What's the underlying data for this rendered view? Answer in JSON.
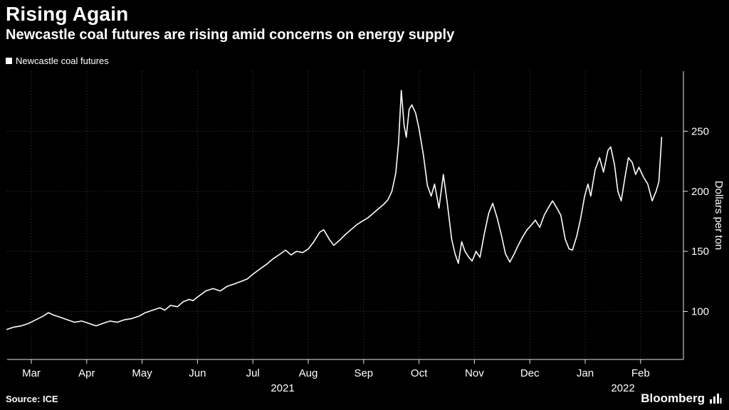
{
  "header": {
    "title": "Rising Again",
    "subtitle": "Newcastle coal futures are rising amid concerns on energy supply"
  },
  "legend": {
    "label": "Newcastle coal futures",
    "marker_color": "#ffffff"
  },
  "footer": {
    "source": "Source: ICE",
    "brand": "Bloomberg"
  },
  "colors": {
    "background": "#000000",
    "line": "#ffffff",
    "grid": "#3a3a3a",
    "axis": "#e8e8e8",
    "text": "#ffffff"
  },
  "chart_data": {
    "type": "line",
    "title": "Rising Again",
    "subtitle": "Newcastle coal futures are rising amid concerns on energy supply",
    "series_name": "Newcastle coal futures",
    "ylabel": "Dollars per ton",
    "x_unit": "months since 2021-03-01",
    "x_tick_labels": [
      "Mar",
      "Apr",
      "May",
      "Jun",
      "Jul",
      "Aug",
      "Sep",
      "Oct",
      "Nov",
      "Dec",
      "Jan",
      "Feb"
    ],
    "year_labels": [
      "2021",
      "2022"
    ],
    "y_ticks": [
      100,
      150,
      200,
      250
    ],
    "ylim": [
      60,
      300
    ],
    "grid": "dotted",
    "legend_position": "top-left",
    "source": "ICE",
    "points": [
      [
        -0.44,
        85
      ],
      [
        -0.31,
        87
      ],
      [
        -0.18,
        88
      ],
      [
        -0.05,
        90
      ],
      [
        0.08,
        93
      ],
      [
        0.21,
        96
      ],
      [
        0.31,
        99
      ],
      [
        0.4,
        97
      ],
      [
        0.53,
        95
      ],
      [
        0.65,
        93
      ],
      [
        0.78,
        91
      ],
      [
        0.91,
        92
      ],
      [
        1.04,
        90
      ],
      [
        1.17,
        88
      ],
      [
        1.29,
        90
      ],
      [
        1.42,
        92
      ],
      [
        1.55,
        91
      ],
      [
        1.68,
        93
      ],
      [
        1.81,
        94
      ],
      [
        1.94,
        96
      ],
      [
        2.06,
        99
      ],
      [
        2.19,
        101
      ],
      [
        2.32,
        103
      ],
      [
        2.41,
        101
      ],
      [
        2.51,
        105
      ],
      [
        2.64,
        104
      ],
      [
        2.74,
        108
      ],
      [
        2.85,
        110
      ],
      [
        2.92,
        109
      ],
      [
        3.03,
        113
      ],
      [
        3.15,
        117
      ],
      [
        3.28,
        119
      ],
      [
        3.41,
        117
      ],
      [
        3.54,
        121
      ],
      [
        3.67,
        123
      ],
      [
        3.79,
        125
      ],
      [
        3.9,
        127
      ],
      [
        4.0,
        131
      ],
      [
        4.12,
        135
      ],
      [
        4.24,
        139
      ],
      [
        4.37,
        144
      ],
      [
        4.5,
        148
      ],
      [
        4.59,
        151
      ],
      [
        4.69,
        147
      ],
      [
        4.79,
        150
      ],
      [
        4.9,
        149
      ],
      [
        5.0,
        152
      ],
      [
        5.1,
        158
      ],
      [
        5.21,
        166
      ],
      [
        5.28,
        168
      ],
      [
        5.38,
        160
      ],
      [
        5.46,
        155
      ],
      [
        5.56,
        159
      ],
      [
        5.67,
        164
      ],
      [
        5.77,
        168
      ],
      [
        5.87,
        172
      ],
      [
        5.97,
        175
      ],
      [
        6.08,
        178
      ],
      [
        6.18,
        182
      ],
      [
        6.28,
        186
      ],
      [
        6.36,
        189
      ],
      [
        6.44,
        193
      ],
      [
        6.51,
        200
      ],
      [
        6.58,
        215
      ],
      [
        6.63,
        240
      ],
      [
        6.68,
        284
      ],
      [
        6.73,
        255
      ],
      [
        6.77,
        245
      ],
      [
        6.82,
        268
      ],
      [
        6.87,
        272
      ],
      [
        6.94,
        265
      ],
      [
        7.0,
        252
      ],
      [
        7.08,
        230
      ],
      [
        7.15,
        205
      ],
      [
        7.22,
        196
      ],
      [
        7.28,
        206
      ],
      [
        7.36,
        186
      ],
      [
        7.44,
        214
      ],
      [
        7.51,
        190
      ],
      [
        7.59,
        160
      ],
      [
        7.65,
        148
      ],
      [
        7.71,
        140
      ],
      [
        7.77,
        158
      ],
      [
        7.83,
        150
      ],
      [
        7.9,
        145
      ],
      [
        7.96,
        142
      ],
      [
        8.03,
        150
      ],
      [
        8.1,
        145
      ],
      [
        8.18,
        165
      ],
      [
        8.26,
        182
      ],
      [
        8.33,
        190
      ],
      [
        8.41,
        178
      ],
      [
        8.49,
        163
      ],
      [
        8.56,
        148
      ],
      [
        8.64,
        141
      ],
      [
        8.72,
        148
      ],
      [
        8.79,
        155
      ],
      [
        8.87,
        162
      ],
      [
        8.95,
        168
      ],
      [
        9.03,
        172
      ],
      [
        9.1,
        176
      ],
      [
        9.18,
        170
      ],
      [
        9.26,
        180
      ],
      [
        9.33,
        186
      ],
      [
        9.41,
        192
      ],
      [
        9.49,
        186
      ],
      [
        9.56,
        180
      ],
      [
        9.64,
        160
      ],
      [
        9.71,
        152
      ],
      [
        9.77,
        151
      ],
      [
        9.85,
        163
      ],
      [
        9.92,
        178
      ],
      [
        9.99,
        196
      ],
      [
        10.05,
        206
      ],
      [
        10.1,
        196
      ],
      [
        10.18,
        218
      ],
      [
        10.26,
        228
      ],
      [
        10.33,
        216
      ],
      [
        10.41,
        234
      ],
      [
        10.46,
        237
      ],
      [
        10.53,
        222
      ],
      [
        10.59,
        200
      ],
      [
        10.65,
        192
      ],
      [
        10.72,
        212
      ],
      [
        10.78,
        228
      ],
      [
        10.85,
        224
      ],
      [
        10.91,
        214
      ],
      [
        10.97,
        220
      ],
      [
        11.05,
        212
      ],
      [
        11.13,
        206
      ],
      [
        11.21,
        192
      ],
      [
        11.28,
        200
      ],
      [
        11.33,
        208
      ],
      [
        11.38,
        245
      ]
    ]
  }
}
